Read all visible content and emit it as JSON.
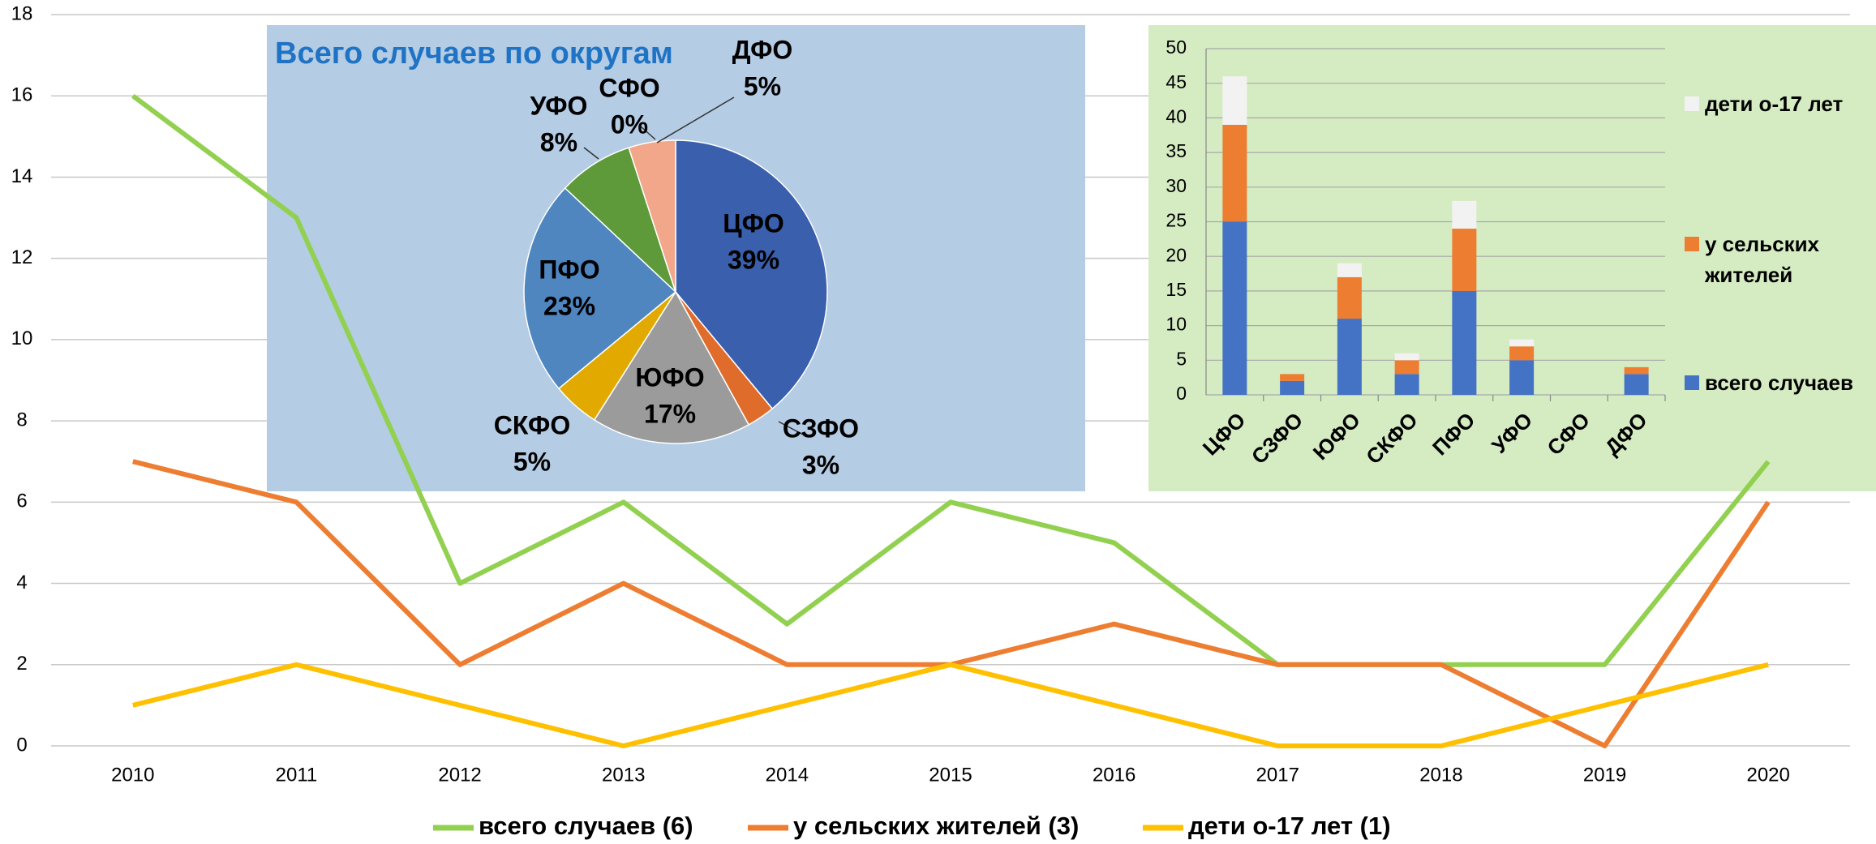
{
  "chart_data": [
    {
      "type": "line",
      "categories": [
        "2010",
        "2011",
        "2012",
        "2013",
        "2014",
        "2015",
        "2016",
        "2017",
        "2018",
        "2019",
        "2020"
      ],
      "series": [
        {
          "name": "всего случаев (6)",
          "color": "#92d050",
          "values": [
            16,
            13,
            4,
            6,
            3,
            6,
            5,
            2,
            2,
            2,
            7
          ]
        },
        {
          "name": "у сельских жителей (3)",
          "color": "#ed7d31",
          "values": [
            7,
            6,
            2,
            4,
            2,
            2,
            3,
            2,
            2,
            0,
            6
          ]
        },
        {
          "name": "дети о-17 лет (1)",
          "color": "#ffc000",
          "values": [
            1,
            2,
            1,
            0,
            1,
            2,
            1,
            0,
            0,
            1,
            2
          ]
        }
      ],
      "ylim": [
        0,
        18
      ],
      "yticks": [
        0,
        2,
        4,
        6,
        8,
        10,
        12,
        14,
        16,
        18
      ],
      "grid": true,
      "legend": "bottom"
    },
    {
      "type": "pie",
      "title": "Всего случаев по округам",
      "categories": [
        "ЦФО",
        "СЗФО",
        "ЮФО",
        "СКФО",
        "ПФО",
        "УФО",
        "СФО",
        "ДФО"
      ],
      "values": [
        39,
        3,
        17,
        5,
        23,
        8,
        0,
        5
      ],
      "value_labels": [
        "39%",
        "3%",
        "17%",
        "5%",
        "23%",
        "8%",
        "0%",
        "5%"
      ],
      "colors": [
        "#3a5fad",
        "#e06c2c",
        "#9b9b9b",
        "#e2aa00",
        "#4f86c0",
        "#5e9a3a",
        "#2c4a7f",
        "#f2a68a"
      ]
    },
    {
      "type": "bar",
      "stacked": true,
      "categories": [
        "ЦФО",
        "СЗФО",
        "ЮФО",
        "СКФО",
        "ПФО",
        "УФО",
        "СФО",
        "ДФО"
      ],
      "series": [
        {
          "name": "всего случаев",
          "color": "#4472c4",
          "values": [
            25,
            2,
            11,
            3,
            15,
            5,
            0,
            3
          ]
        },
        {
          "name": "у сельских жителей",
          "color": "#ed7d31",
          "values": [
            14,
            1,
            6,
            2,
            9,
            2,
            0,
            1
          ]
        },
        {
          "name": "дети о-17 лет",
          "color": "#f2f2f2",
          "values": [
            7,
            0,
            2,
            1,
            4,
            1,
            0,
            0
          ]
        }
      ],
      "ylim": [
        0,
        50
      ],
      "yticks": [
        0,
        5,
        10,
        15,
        20,
        25,
        30,
        35,
        40,
        45,
        50
      ],
      "grid": true,
      "legend": "right"
    }
  ]
}
